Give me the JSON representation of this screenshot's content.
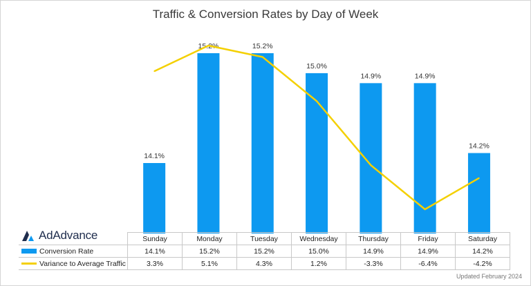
{
  "chart_data": {
    "type": "bar",
    "title": "Traffic & Conversion Rates by Day of Week",
    "categories": [
      "Sunday",
      "Monday",
      "Tuesday",
      "Wednesday",
      "Thursday",
      "Friday",
      "Saturday"
    ],
    "series": [
      {
        "name": "Conversion Rate",
        "type": "bar",
        "color": "#0d99f0",
        "values": [
          14.1,
          15.2,
          15.2,
          15.0,
          14.9,
          14.9,
          14.2
        ],
        "labels": [
          "14.1%",
          "15.2%",
          "15.2%",
          "15.0%",
          "14.9%",
          "14.9%",
          "14.2%"
        ]
      },
      {
        "name": "Variance to Average Traffic",
        "type": "line",
        "color": "#f4d000",
        "values": [
          3.3,
          5.1,
          4.3,
          1.2,
          -3.3,
          -6.4,
          -4.2
        ],
        "labels": [
          "3.3%",
          "5.1%",
          "4.3%",
          "1.2%",
          "-3.3%",
          "-6.4%",
          "-4.2%"
        ]
      }
    ],
    "legend": "data-table",
    "grid": false
  },
  "logo": {
    "text": "AdAdvance"
  },
  "footer": {
    "updated": "Updated February 2024"
  }
}
